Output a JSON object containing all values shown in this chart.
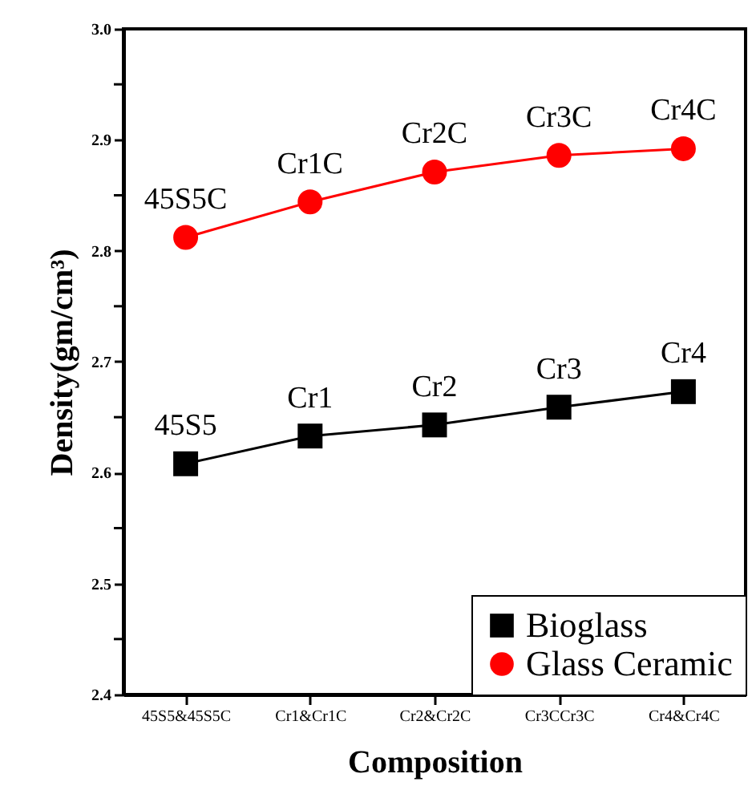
{
  "chart_data": {
    "type": "line",
    "xlabel": "Composition",
    "ylabel": "Density(gm/cm³)",
    "categories": [
      "45S5&45S5C",
      "Cr1&Cr1C",
      "Cr2&Cr2C",
      "Cr3CCr3C",
      "Cr4&Cr4C"
    ],
    "series": [
      {
        "name": "Bioglass",
        "color": "#000000",
        "marker": "square",
        "values": [
          2.608,
          2.633,
          2.643,
          2.659,
          2.673
        ]
      },
      {
        "name": "Glass Ceramic",
        "color": "#ff0000",
        "marker": "circle",
        "values": [
          2.812,
          2.844,
          2.871,
          2.886,
          2.892
        ]
      }
    ],
    "ylim": [
      2.4,
      3.0
    ],
    "yticks": [
      2.4,
      {
        "value": 2.45,
        "label": null
      },
      2.5,
      {
        "value": 2.55,
        "label": null
      },
      2.6,
      {
        "value": 2.65,
        "label": null
      },
      2.7,
      {
        "value": 2.75,
        "label": null
      },
      2.8,
      {
        "value": 2.85,
        "label": null
      },
      2.9,
      {
        "value": 2.95,
        "label": null
      },
      {
        "value": 3.0,
        "label": "3.0"
      }
    ],
    "grid": false,
    "legend": "bottom right",
    "line_style": "solid",
    "annotations": [
      {
        "text": "45S5",
        "x": "45S5&45S5C",
        "y": 2.608
      },
      {
        "text": "Cr1",
        "x": "Cr1&Cr1C",
        "y": 2.633
      },
      {
        "text": "Cr2",
        "x": "Cr2&Cr2C",
        "y": 2.643
      },
      {
        "text": "Cr3",
        "x": "Cr3CCr3C",
        "y": 2.659
      },
      {
        "text": "Cr4",
        "x": "Cr4&Cr4C",
        "y": 2.673
      },
      {
        "text": "45S5C",
        "x": "45S5&45S5C",
        "y": 2.812
      },
      {
        "text": "Cr1C",
        "x": "Cr1&Cr1C",
        "y": 2.844
      },
      {
        "text": "Cr2C",
        "x": "Cr2&Cr2C",
        "y": 2.871
      },
      {
        "text": "Cr3C",
        "x": "Cr3CCr3C",
        "y": 2.886
      },
      {
        "text": "Cr4C",
        "x": "Cr4&Cr4C",
        "y": 2.892
      }
    ]
  }
}
